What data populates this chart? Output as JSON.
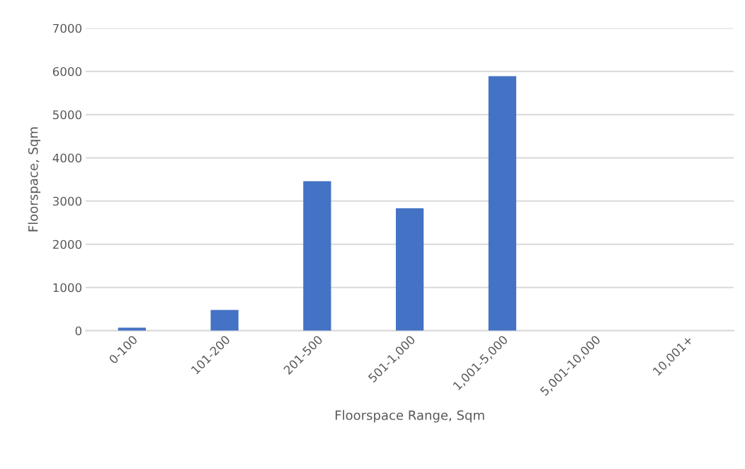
{
  "chart_data": {
    "type": "bar",
    "xlabel": "Floorspace Range, Sqm",
    "ylabel": "Floorspace, Sqm",
    "categories": [
      "0-100",
      "101-200",
      "201-500",
      "501-1,000",
      "1,001-5,000",
      "5,001-10,000",
      "10,001+"
    ],
    "values": [
      70,
      480,
      3460,
      2830,
      5890,
      0,
      0
    ],
    "color": "#4472c4",
    "ylim": [
      0,
      7000
    ],
    "yticks": [
      0,
      1000,
      2000,
      3000,
      4000,
      5000,
      6000,
      7000
    ],
    "grid": "y"
  }
}
